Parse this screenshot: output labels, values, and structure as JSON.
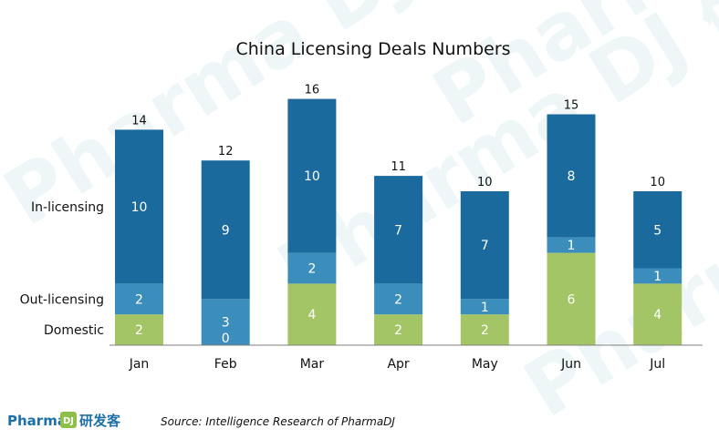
{
  "chart_data": {
    "type": "bar",
    "stacked": true,
    "title": "China Licensing Deals Numbers",
    "categories": [
      "Jan",
      "Feb",
      "Mar",
      "Apr",
      "May",
      "Jun",
      "Jul"
    ],
    "series": [
      {
        "name": "Domestic",
        "values": [
          2,
          0,
          4,
          2,
          2,
          6,
          4
        ],
        "color": "#a4c565"
      },
      {
        "name": "Out-licensing",
        "values": [
          2,
          3,
          2,
          2,
          1,
          1,
          1
        ],
        "color": "#3b8dbb"
      },
      {
        "name": "In-licensing",
        "values": [
          10,
          9,
          10,
          7,
          7,
          8,
          5
        ],
        "color": "#1b6a9e"
      }
    ],
    "totals": [
      14,
      12,
      16,
      11,
      10,
      15,
      10
    ],
    "ylim": [
      0,
      16
    ],
    "grid": false,
    "legend": "left row labels"
  },
  "logo": {
    "latin": "Pharma",
    "mark": "DJ",
    "chinese": "研发客"
  },
  "watermark": {
    "text": "Pharma DJ 研发客"
  },
  "source": "Source: Intelligence Research of PharmaDJ"
}
